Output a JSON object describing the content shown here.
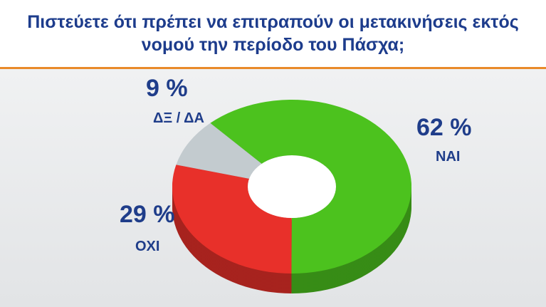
{
  "chart_data": {
    "type": "pie",
    "title": "Πιστεύετε ότι πρέπει να επιτραπούν οι μετακινήσεις εκτός νομού την περίοδο του Πάσχα;",
    "categories": [
      "ΝΑΙ",
      "ΟΧΙ",
      "ΔΞ / ΔΑ"
    ],
    "values": [
      62,
      29,
      9
    ],
    "value_labels": [
      "62 %",
      "29 %",
      "9 %"
    ],
    "colors": [
      "#4cc21e",
      "#e8302a",
      "#c3cbcf"
    ]
  }
}
